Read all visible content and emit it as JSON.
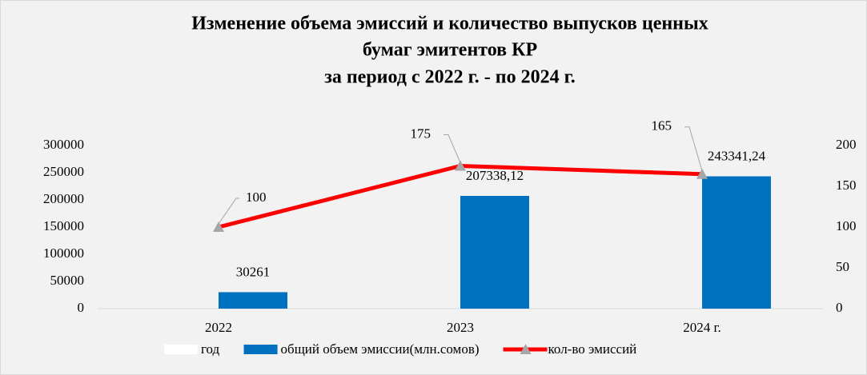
{
  "chart_data": {
    "type": "bar-line",
    "title": [
      "Изменение объема эмиссий и количество выпусков ценных",
      "бумаг эмитентов КР",
      "за период с 2022 г. - по 2024 г."
    ],
    "categories": [
      "2022",
      "2023",
      "2024 г."
    ],
    "series": [
      {
        "name": "год",
        "color": "#ffffff",
        "type": "bar",
        "axis": "y",
        "values": [
          null,
          null,
          null
        ]
      },
      {
        "name": "общий объем эмиссии(млн.сомов)",
        "color": "#0070c0",
        "type": "bar",
        "axis": "y",
        "values": [
          30261,
          207338.12,
          243341.24
        ],
        "value_labels": [
          "30261",
          "207338,12",
          "243341,24"
        ]
      },
      {
        "name": "кол-во эмиссий",
        "color": "#ff0000",
        "marker_color": "#a6a6a6",
        "type": "line",
        "axis": "y2",
        "values": [
          100,
          175,
          165
        ]
      }
    ],
    "ylim": [
      0,
      300000
    ],
    "yticks": [
      0,
      50000,
      100000,
      150000,
      200000,
      250000,
      300000
    ],
    "y2lim": [
      0,
      200
    ],
    "y2ticks": [
      0,
      50,
      100,
      150,
      200
    ],
    "grid": false,
    "legend": "bottom"
  }
}
